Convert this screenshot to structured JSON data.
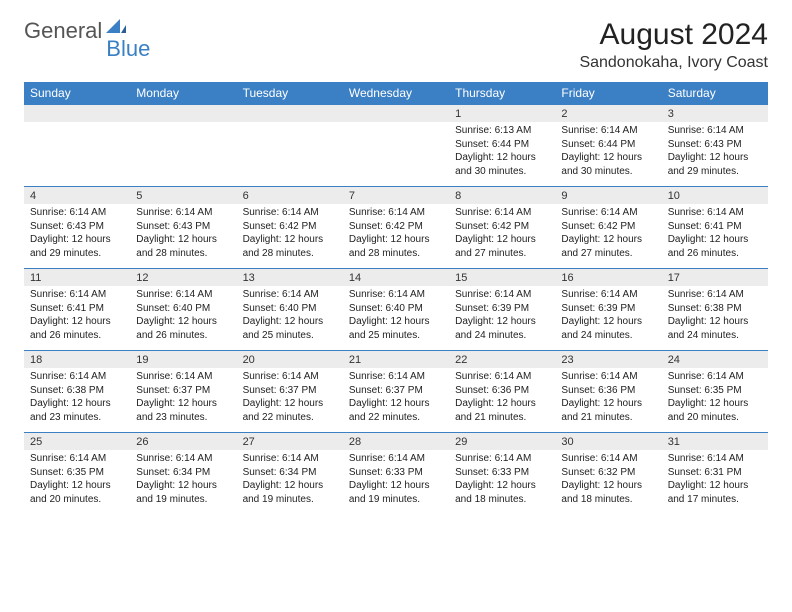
{
  "logo": {
    "text1": "General",
    "text2": "Blue"
  },
  "title": "August 2024",
  "location": "Sandonokaha, Ivory Coast",
  "colors": {
    "header_bg": "#3b7fc4",
    "header_text": "#ffffff",
    "daynum_bg": "#ececec",
    "border": "#3b7fc4",
    "text": "#222222",
    "logo_gray": "#555555",
    "logo_blue": "#3b7fc4",
    "page_bg": "#ffffff"
  },
  "fonts": {
    "title_size": 30,
    "location_size": 16,
    "dow_size": 12,
    "daynum_size": 11,
    "body_size": 10
  },
  "dow": [
    "Sunday",
    "Monday",
    "Tuesday",
    "Wednesday",
    "Thursday",
    "Friday",
    "Saturday"
  ],
  "weeks": [
    [
      null,
      null,
      null,
      null,
      {
        "n": "1",
        "sr": "Sunrise: 6:13 AM",
        "ss": "Sunset: 6:44 PM",
        "dl": "Daylight: 12 hours and 30 minutes."
      },
      {
        "n": "2",
        "sr": "Sunrise: 6:14 AM",
        "ss": "Sunset: 6:44 PM",
        "dl": "Daylight: 12 hours and 30 minutes."
      },
      {
        "n": "3",
        "sr": "Sunrise: 6:14 AM",
        "ss": "Sunset: 6:43 PM",
        "dl": "Daylight: 12 hours and 29 minutes."
      }
    ],
    [
      {
        "n": "4",
        "sr": "Sunrise: 6:14 AM",
        "ss": "Sunset: 6:43 PM",
        "dl": "Daylight: 12 hours and 29 minutes."
      },
      {
        "n": "5",
        "sr": "Sunrise: 6:14 AM",
        "ss": "Sunset: 6:43 PM",
        "dl": "Daylight: 12 hours and 28 minutes."
      },
      {
        "n": "6",
        "sr": "Sunrise: 6:14 AM",
        "ss": "Sunset: 6:42 PM",
        "dl": "Daylight: 12 hours and 28 minutes."
      },
      {
        "n": "7",
        "sr": "Sunrise: 6:14 AM",
        "ss": "Sunset: 6:42 PM",
        "dl": "Daylight: 12 hours and 28 minutes."
      },
      {
        "n": "8",
        "sr": "Sunrise: 6:14 AM",
        "ss": "Sunset: 6:42 PM",
        "dl": "Daylight: 12 hours and 27 minutes."
      },
      {
        "n": "9",
        "sr": "Sunrise: 6:14 AM",
        "ss": "Sunset: 6:42 PM",
        "dl": "Daylight: 12 hours and 27 minutes."
      },
      {
        "n": "10",
        "sr": "Sunrise: 6:14 AM",
        "ss": "Sunset: 6:41 PM",
        "dl": "Daylight: 12 hours and 26 minutes."
      }
    ],
    [
      {
        "n": "11",
        "sr": "Sunrise: 6:14 AM",
        "ss": "Sunset: 6:41 PM",
        "dl": "Daylight: 12 hours and 26 minutes."
      },
      {
        "n": "12",
        "sr": "Sunrise: 6:14 AM",
        "ss": "Sunset: 6:40 PM",
        "dl": "Daylight: 12 hours and 26 minutes."
      },
      {
        "n": "13",
        "sr": "Sunrise: 6:14 AM",
        "ss": "Sunset: 6:40 PM",
        "dl": "Daylight: 12 hours and 25 minutes."
      },
      {
        "n": "14",
        "sr": "Sunrise: 6:14 AM",
        "ss": "Sunset: 6:40 PM",
        "dl": "Daylight: 12 hours and 25 minutes."
      },
      {
        "n": "15",
        "sr": "Sunrise: 6:14 AM",
        "ss": "Sunset: 6:39 PM",
        "dl": "Daylight: 12 hours and 24 minutes."
      },
      {
        "n": "16",
        "sr": "Sunrise: 6:14 AM",
        "ss": "Sunset: 6:39 PM",
        "dl": "Daylight: 12 hours and 24 minutes."
      },
      {
        "n": "17",
        "sr": "Sunrise: 6:14 AM",
        "ss": "Sunset: 6:38 PM",
        "dl": "Daylight: 12 hours and 24 minutes."
      }
    ],
    [
      {
        "n": "18",
        "sr": "Sunrise: 6:14 AM",
        "ss": "Sunset: 6:38 PM",
        "dl": "Daylight: 12 hours and 23 minutes."
      },
      {
        "n": "19",
        "sr": "Sunrise: 6:14 AM",
        "ss": "Sunset: 6:37 PM",
        "dl": "Daylight: 12 hours and 23 minutes."
      },
      {
        "n": "20",
        "sr": "Sunrise: 6:14 AM",
        "ss": "Sunset: 6:37 PM",
        "dl": "Daylight: 12 hours and 22 minutes."
      },
      {
        "n": "21",
        "sr": "Sunrise: 6:14 AM",
        "ss": "Sunset: 6:37 PM",
        "dl": "Daylight: 12 hours and 22 minutes."
      },
      {
        "n": "22",
        "sr": "Sunrise: 6:14 AM",
        "ss": "Sunset: 6:36 PM",
        "dl": "Daylight: 12 hours and 21 minutes."
      },
      {
        "n": "23",
        "sr": "Sunrise: 6:14 AM",
        "ss": "Sunset: 6:36 PM",
        "dl": "Daylight: 12 hours and 21 minutes."
      },
      {
        "n": "24",
        "sr": "Sunrise: 6:14 AM",
        "ss": "Sunset: 6:35 PM",
        "dl": "Daylight: 12 hours and 20 minutes."
      }
    ],
    [
      {
        "n": "25",
        "sr": "Sunrise: 6:14 AM",
        "ss": "Sunset: 6:35 PM",
        "dl": "Daylight: 12 hours and 20 minutes."
      },
      {
        "n": "26",
        "sr": "Sunrise: 6:14 AM",
        "ss": "Sunset: 6:34 PM",
        "dl": "Daylight: 12 hours and 19 minutes."
      },
      {
        "n": "27",
        "sr": "Sunrise: 6:14 AM",
        "ss": "Sunset: 6:34 PM",
        "dl": "Daylight: 12 hours and 19 minutes."
      },
      {
        "n": "28",
        "sr": "Sunrise: 6:14 AM",
        "ss": "Sunset: 6:33 PM",
        "dl": "Daylight: 12 hours and 19 minutes."
      },
      {
        "n": "29",
        "sr": "Sunrise: 6:14 AM",
        "ss": "Sunset: 6:33 PM",
        "dl": "Daylight: 12 hours and 18 minutes."
      },
      {
        "n": "30",
        "sr": "Sunrise: 6:14 AM",
        "ss": "Sunset: 6:32 PM",
        "dl": "Daylight: 12 hours and 18 minutes."
      },
      {
        "n": "31",
        "sr": "Sunrise: 6:14 AM",
        "ss": "Sunset: 6:31 PM",
        "dl": "Daylight: 12 hours and 17 minutes."
      }
    ]
  ]
}
